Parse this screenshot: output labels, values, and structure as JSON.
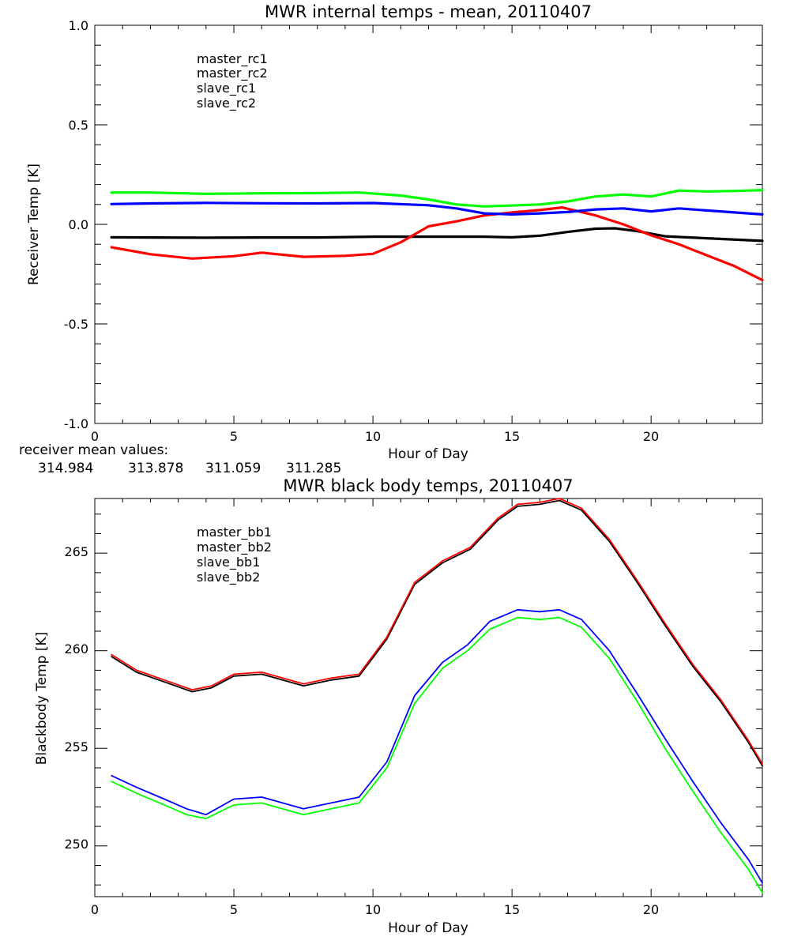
{
  "chart_data": [
    {
      "type": "line",
      "title": "MWR internal temps - mean, 20110407",
      "xlabel": "Hour of Day",
      "ylabel": "Receiver Temp [K]",
      "xlim": [
        0,
        24
      ],
      "ylim": [
        -1.0,
        1.0
      ],
      "xticks": [
        "0",
        "5",
        "10",
        "15",
        "20"
      ],
      "yticks": [
        "-1.0",
        "-0.5",
        "0.0",
        "0.5",
        "1.0"
      ],
      "grid": false,
      "legend_position": "top-left",
      "series": [
        {
          "name": "master_rc1",
          "color": "#000000",
          "x": [
            0.6,
            2,
            4,
            6,
            8,
            10,
            12,
            14,
            15,
            16,
            17,
            18,
            18.7,
            19.5,
            20.5,
            22,
            24
          ],
          "y": [
            -0.065,
            -0.066,
            -0.067,
            -0.066,
            -0.066,
            -0.062,
            -0.062,
            -0.062,
            -0.065,
            -0.057,
            -0.038,
            -0.022,
            -0.02,
            -0.034,
            -0.06,
            -0.07,
            -0.083
          ]
        },
        {
          "name": "master_rc2",
          "color": "#ff0000",
          "x": [
            0.6,
            2,
            3.5,
            5,
            6,
            7.5,
            9,
            10,
            11,
            12,
            13,
            14,
            15,
            16,
            16.8,
            18,
            19,
            20,
            21,
            22,
            23,
            24
          ],
          "y": [
            -0.115,
            -0.15,
            -0.172,
            -0.16,
            -0.142,
            -0.163,
            -0.158,
            -0.148,
            -0.09,
            -0.01,
            0.015,
            0.045,
            0.06,
            0.072,
            0.085,
            0.045,
            0.0,
            -0.055,
            -0.1,
            -0.155,
            -0.21,
            -0.28
          ]
        },
        {
          "name": "slave_rc1",
          "color": "#0000ff",
          "x": [
            0.6,
            2,
            4,
            6,
            8,
            10,
            12,
            13,
            14,
            15,
            16,
            17,
            18,
            19,
            20,
            21,
            22,
            23,
            24
          ],
          "y": [
            0.102,
            0.105,
            0.108,
            0.106,
            0.105,
            0.107,
            0.096,
            0.08,
            0.055,
            0.05,
            0.055,
            0.062,
            0.075,
            0.08,
            0.065,
            0.08,
            0.07,
            0.06,
            0.05
          ]
        },
        {
          "name": "slave_rc2",
          "color": "#00ff00",
          "x": [
            0.6,
            2,
            4,
            6,
            8,
            9.5,
            11,
            12,
            13,
            14,
            15,
            16,
            17,
            18,
            19,
            20,
            21,
            22,
            23,
            24
          ],
          "y": [
            0.16,
            0.16,
            0.153,
            0.156,
            0.157,
            0.16,
            0.145,
            0.125,
            0.1,
            0.09,
            0.095,
            0.1,
            0.115,
            0.14,
            0.15,
            0.14,
            0.17,
            0.165,
            0.168,
            0.172
          ]
        }
      ],
      "mean_values": {
        "label": "receiver mean values:",
        "values": [
          {
            "text": "314.984",
            "color": "#000000"
          },
          {
            "text": "313.878",
            "color": "#ff0000"
          },
          {
            "text": "311.059",
            "color": "#0000ff"
          },
          {
            "text": "311.285",
            "color": "#00ff00"
          }
        ]
      }
    },
    {
      "type": "line",
      "title": "MWR black body temps, 20110407",
      "xlabel": "Hour of Day",
      "ylabel": "Blackbody Temp [K]",
      "xlim": [
        0,
        24
      ],
      "ylim": [
        247.4,
        267.8
      ],
      "xticks": [
        "0",
        "5",
        "10",
        "15",
        "20"
      ],
      "yticks": [
        "250",
        "255",
        "260",
        "265"
      ],
      "grid": false,
      "legend_position": "top-left",
      "series": [
        {
          "name": "master_bb1",
          "color": "#000000",
          "x": [
            0.6,
            1.5,
            2.5,
            3.5,
            4.2,
            5,
            6,
            6.5,
            7.5,
            8.5,
            9.5,
            10.5,
            11.5,
            12.5,
            13.5,
            14.5,
            15.2,
            16,
            16.7,
            17.5,
            18.5,
            19.5,
            20.5,
            21.5,
            22.5,
            23.5,
            24
          ],
          "y": [
            259.7,
            258.9,
            258.4,
            257.9,
            258.1,
            258.7,
            258.8,
            258.6,
            258.2,
            258.5,
            258.7,
            260.6,
            263.4,
            264.5,
            265.2,
            266.7,
            267.4,
            267.5,
            267.7,
            267.2,
            265.6,
            263.5,
            261.3,
            259.2,
            257.4,
            255.3,
            254.1
          ]
        },
        {
          "name": "master_bb2",
          "color": "#ff0000",
          "x": [
            0.6,
            1.5,
            2.5,
            3.5,
            4.2,
            5,
            6,
            6.5,
            7.5,
            8.5,
            9.5,
            10.5,
            11.5,
            12.5,
            13.5,
            14.5,
            15.2,
            16,
            16.7,
            17.5,
            18.5,
            19.5,
            20.5,
            21.5,
            22.5,
            23.5,
            24
          ],
          "y": [
            259.8,
            259.0,
            258.5,
            258.0,
            258.2,
            258.8,
            258.9,
            258.7,
            258.3,
            258.6,
            258.8,
            260.7,
            263.5,
            264.6,
            265.3,
            266.8,
            267.5,
            267.6,
            267.8,
            267.3,
            265.7,
            263.6,
            261.4,
            259.3,
            257.5,
            255.4,
            254.2
          ]
        },
        {
          "name": "slave_bb1",
          "color": "#0000ff",
          "x": [
            0.6,
            1.5,
            2.5,
            3.3,
            4,
            5,
            6,
            6.5,
            7.5,
            8.5,
            9.5,
            10.5,
            11.5,
            12.5,
            13.4,
            14.2,
            15.2,
            16,
            16.7,
            17.5,
            18.5,
            19.5,
            20.5,
            21.5,
            22.5,
            23.5,
            24
          ],
          "y": [
            253.6,
            253.0,
            252.4,
            251.9,
            251.6,
            252.4,
            252.5,
            252.3,
            251.9,
            252.2,
            252.5,
            254.3,
            257.7,
            259.4,
            260.3,
            261.5,
            262.1,
            262.0,
            262.1,
            261.6,
            260.0,
            257.8,
            255.5,
            253.3,
            251.2,
            249.3,
            248.1
          ]
        },
        {
          "name": "slave_bb2",
          "color": "#00ff00",
          "x": [
            0.6,
            1.5,
            2.5,
            3.3,
            4,
            5,
            6,
            6.5,
            7.5,
            8.5,
            9.5,
            10.5,
            11.5,
            12.5,
            13.4,
            14.2,
            15.2,
            16,
            16.7,
            17.5,
            18.5,
            19.5,
            20.5,
            21.5,
            22.5,
            23.5,
            24
          ],
          "y": [
            253.3,
            252.7,
            252.1,
            251.6,
            251.4,
            252.1,
            252.2,
            252.0,
            251.6,
            251.9,
            252.2,
            254.0,
            257.3,
            259.1,
            260.0,
            261.1,
            261.7,
            261.6,
            261.7,
            261.2,
            259.6,
            257.4,
            255.0,
            252.8,
            250.7,
            248.8,
            247.6
          ]
        }
      ]
    }
  ]
}
